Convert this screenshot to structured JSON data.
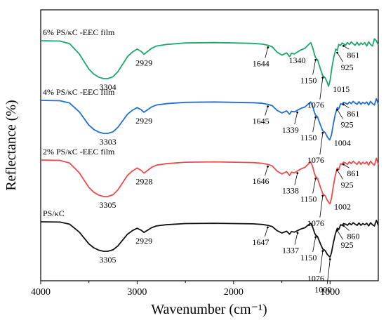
{
  "chart_data": {
    "type": "line",
    "title": "",
    "xlabel": "Wavenumber (cm⁻¹)",
    "ylabel": "Reflectance (%)",
    "x_reversed": true,
    "xlim": [
      4000,
      500
    ],
    "x_ticks": [
      "4000",
      "3000",
      "2000",
      "1000"
    ],
    "y_ticks_shown": false,
    "grid": false,
    "legend": "none",
    "series": [
      {
        "name": "6% PS/κC -EEC film",
        "color": "#1aa86b",
        "x": [
          4000,
          3800,
          3700,
          3600,
          3550,
          3500,
          3450,
          3400,
          3350,
          3304,
          3250,
          3200,
          3150,
          3100,
          3050,
          3000,
          2960,
          2929,
          2900,
          2870,
          2850,
          2800,
          2700,
          2500,
          2200,
          2000,
          1800,
          1700,
          1644,
          1600,
          1550,
          1500,
          1450,
          1420,
          1400,
          1370,
          1340,
          1300,
          1260,
          1230,
          1200,
          1180,
          1160,
          1150,
          1130,
          1100,
          1076,
          1050,
          1030,
          1015,
          1000,
          980,
          960,
          940,
          925,
          910,
          890,
          875,
          861,
          840,
          820,
          800,
          780,
          760,
          740,
          720,
          700,
          680,
          660,
          640,
          620,
          600,
          580,
          560,
          540,
          520,
          500
        ],
        "y": [
          0,
          0.01,
          0.08,
          0.35,
          0.55,
          0.75,
          0.88,
          0.96,
          1.0,
          1.0,
          0.95,
          0.82,
          0.62,
          0.42,
          0.3,
          0.22,
          0.28,
          0.36,
          0.3,
          0.24,
          0.2,
          0.14,
          0.1,
          0.06,
          0.05,
          0.06,
          0.07,
          0.09,
          0.12,
          0.16,
          0.3,
          0.38,
          0.32,
          0.42,
          0.33,
          0.35,
          0.3,
          0.24,
          0.2,
          0.12,
          0.05,
          0.18,
          0.38,
          0.45,
          0.5,
          0.74,
          0.92,
          0.98,
          1.1,
          1.2,
          1.05,
          0.7,
          0.42,
          0.22,
          0.26,
          0.1,
          0.12,
          0.06,
          0.08,
          0.12,
          0.05,
          0.1,
          0.03,
          0.08,
          0.12,
          0.04,
          0.12,
          0.06,
          0.1,
          0.05,
          0.14,
          0.03,
          0.1,
          0.14,
          -0.05,
          0.0,
          0.12
        ]
      },
      {
        "name": "4% PS/κC -EEC film",
        "color": "#1f6fd6",
        "x": [
          4000,
          3800,
          3700,
          3600,
          3550,
          3500,
          3450,
          3400,
          3350,
          3303,
          3250,
          3200,
          3150,
          3100,
          3050,
          3000,
          2960,
          2929,
          2900,
          2870,
          2850,
          2800,
          2700,
          2500,
          2200,
          2000,
          1800,
          1700,
          1645,
          1600,
          1550,
          1500,
          1450,
          1420,
          1400,
          1370,
          1339,
          1300,
          1260,
          1230,
          1200,
          1180,
          1160,
          1150,
          1130,
          1100,
          1076,
          1050,
          1030,
          1004,
          985,
          965,
          945,
          925,
          910,
          890,
          875,
          861,
          840,
          820,
          800,
          780,
          760,
          740,
          720,
          700,
          680,
          660,
          640,
          620,
          600,
          580,
          560,
          540,
          520,
          500
        ],
        "y": [
          0,
          0.01,
          0.08,
          0.35,
          0.55,
          0.75,
          0.88,
          0.96,
          1.0,
          1.0,
          0.95,
          0.82,
          0.62,
          0.42,
          0.3,
          0.22,
          0.28,
          0.36,
          0.3,
          0.24,
          0.2,
          0.14,
          0.1,
          0.06,
          0.05,
          0.06,
          0.07,
          0.09,
          0.12,
          0.16,
          0.3,
          0.38,
          0.32,
          0.42,
          0.33,
          0.35,
          0.3,
          0.24,
          0.2,
          0.12,
          0.05,
          0.18,
          0.38,
          0.45,
          0.5,
          0.74,
          0.92,
          0.98,
          1.1,
          1.2,
          1.05,
          0.7,
          0.42,
          0.22,
          0.26,
          0.1,
          0.12,
          0.06,
          0.08,
          0.12,
          0.05,
          0.1,
          0.03,
          0.08,
          0.12,
          0.04,
          0.12,
          0.06,
          0.1,
          0.05,
          0.14,
          0.03,
          0.1,
          0.14,
          -0.05,
          0.12
        ]
      },
      {
        "name": "2% PS/κC -EEC film",
        "color": "#ef4b4b",
        "x": [
          4000,
          3800,
          3700,
          3600,
          3550,
          3500,
          3450,
          3400,
          3350,
          3305,
          3250,
          3200,
          3150,
          3100,
          3050,
          3000,
          2960,
          2928,
          2900,
          2870,
          2850,
          2800,
          2700,
          2500,
          2200,
          2000,
          1800,
          1700,
          1646,
          1600,
          1550,
          1500,
          1450,
          1420,
          1400,
          1370,
          1338,
          1300,
          1260,
          1230,
          1200,
          1180,
          1160,
          1150,
          1130,
          1100,
          1076,
          1050,
          1030,
          1002,
          985,
          965,
          945,
          925,
          910,
          890,
          875,
          861,
          840,
          820,
          800,
          780,
          760,
          740,
          720,
          700,
          680,
          660,
          640,
          620,
          600,
          580,
          560,
          540,
          520,
          500
        ],
        "y": [
          0,
          0.01,
          0.08,
          0.35,
          0.55,
          0.75,
          0.88,
          0.96,
          1.0,
          1.0,
          0.95,
          0.82,
          0.62,
          0.42,
          0.3,
          0.22,
          0.28,
          0.36,
          0.3,
          0.24,
          0.2,
          0.14,
          0.1,
          0.06,
          0.05,
          0.06,
          0.07,
          0.09,
          0.12,
          0.16,
          0.3,
          0.38,
          0.32,
          0.42,
          0.33,
          0.35,
          0.3,
          0.24,
          0.2,
          0.12,
          0.05,
          0.18,
          0.38,
          0.45,
          0.5,
          0.74,
          0.92,
          0.98,
          1.1,
          1.2,
          1.05,
          0.7,
          0.42,
          0.22,
          0.26,
          0.1,
          0.12,
          0.06,
          0.08,
          0.12,
          0.05,
          0.1,
          0.03,
          0.08,
          0.12,
          0.04,
          0.12,
          0.06,
          0.1,
          0.05,
          0.14,
          0.03,
          0.1,
          0.14,
          -0.05,
          0.12
        ]
      },
      {
        "name": "PS/κC",
        "color": "#111111",
        "x": [
          4000,
          3800,
          3700,
          3600,
          3550,
          3500,
          3450,
          3400,
          3350,
          3305,
          3250,
          3200,
          3150,
          3100,
          3050,
          3000,
          2960,
          2929,
          2900,
          2870,
          2850,
          2800,
          2700,
          2500,
          2200,
          2000,
          1800,
          1700,
          1647,
          1600,
          1550,
          1500,
          1450,
          1420,
          1400,
          1370,
          1337,
          1300,
          1260,
          1230,
          1200,
          1180,
          1160,
          1150,
          1130,
          1100,
          1076,
          1050,
          1030,
          1000,
          985,
          965,
          945,
          925,
          910,
          890,
          875,
          860,
          840,
          820,
          800,
          780,
          760,
          740,
          720,
          700,
          680,
          660,
          640,
          620,
          600,
          580,
          560,
          540,
          520,
          500
        ],
        "y": [
          0,
          0.01,
          0.08,
          0.35,
          0.55,
          0.75,
          0.88,
          0.96,
          1.0,
          1.0,
          0.95,
          0.82,
          0.62,
          0.42,
          0.3,
          0.22,
          0.28,
          0.36,
          0.3,
          0.24,
          0.2,
          0.14,
          0.1,
          0.06,
          0.05,
          0.06,
          0.07,
          0.09,
          0.12,
          0.16,
          0.3,
          0.38,
          0.32,
          0.42,
          0.33,
          0.35,
          0.3,
          0.24,
          0.2,
          0.12,
          0.05,
          0.18,
          0.38,
          0.45,
          0.5,
          0.74,
          0.92,
          0.98,
          1.1,
          1.2,
          1.05,
          0.7,
          0.42,
          0.22,
          0.26,
          0.1,
          0.12,
          0.06,
          0.08,
          0.12,
          0.05,
          0.1,
          0.03,
          0.08,
          0.12,
          0.04,
          0.12,
          0.06,
          0.1,
          0.05,
          0.14,
          0.03,
          0.1,
          0.14,
          -0.05,
          0.12
        ]
      }
    ],
    "annotations": [
      {
        "series": 0,
        "label": "3304",
        "x": 3304
      },
      {
        "series": 0,
        "label": "2929",
        "x": 2929
      },
      {
        "series": 0,
        "label": "1644",
        "x": 1644,
        "arrow": true
      },
      {
        "series": 0,
        "label": "1340",
        "x": 1340
      },
      {
        "series": 0,
        "label": "1150",
        "x": 1150,
        "arrow": true
      },
      {
        "series": 0,
        "label": "1076",
        "x": 1076,
        "arrow": true
      },
      {
        "series": 0,
        "label": "1015",
        "x": 1015
      },
      {
        "series": 0,
        "label": "925",
        "x": 925,
        "arrow": true
      },
      {
        "series": 0,
        "label": "861",
        "x": 861,
        "arrow": true
      },
      {
        "series": 1,
        "label": "3303",
        "x": 3303
      },
      {
        "series": 1,
        "label": "2929",
        "x": 2929
      },
      {
        "series": 1,
        "label": "1645",
        "x": 1645,
        "arrow": true
      },
      {
        "series": 1,
        "label": "1339",
        "x": 1339,
        "arrow": true
      },
      {
        "series": 1,
        "label": "1150",
        "x": 1150,
        "arrow": true
      },
      {
        "series": 1,
        "label": "1076",
        "x": 1076,
        "arrow": true
      },
      {
        "series": 1,
        "label": "1004",
        "x": 1004
      },
      {
        "series": 1,
        "label": "925",
        "x": 925,
        "arrow": true
      },
      {
        "series": 1,
        "label": "861",
        "x": 861,
        "arrow": true
      },
      {
        "series": 2,
        "label": "3305",
        "x": 3305
      },
      {
        "series": 2,
        "label": "2928",
        "x": 2928
      },
      {
        "series": 2,
        "label": "1646",
        "x": 1646,
        "arrow": true
      },
      {
        "series": 2,
        "label": "1338",
        "x": 1338,
        "arrow": true
      },
      {
        "series": 2,
        "label": "1150",
        "x": 1150,
        "arrow": true
      },
      {
        "series": 2,
        "label": "1076",
        "x": 1076,
        "arrow": true
      },
      {
        "series": 2,
        "label": "1002",
        "x": 1002
      },
      {
        "series": 2,
        "label": "925",
        "x": 925,
        "arrow": true
      },
      {
        "series": 2,
        "label": "861",
        "x": 861,
        "arrow": true
      },
      {
        "series": 3,
        "label": "3305",
        "x": 3305
      },
      {
        "series": 3,
        "label": "2929",
        "x": 2929
      },
      {
        "series": 3,
        "label": "1647",
        "x": 1647,
        "arrow": true
      },
      {
        "series": 3,
        "label": "1337",
        "x": 1337,
        "arrow": true
      },
      {
        "series": 3,
        "label": "1150",
        "x": 1150,
        "arrow": true
      },
      {
        "series": 3,
        "label": "1076",
        "x": 1076,
        "arrow": true
      },
      {
        "series": 3,
        "label": "1000",
        "x": 1000,
        "arrow": true
      },
      {
        "series": 3,
        "label": "925",
        "x": 925,
        "arrow": true
      },
      {
        "series": 3,
        "label": "860",
        "x": 860,
        "arrow": true
      }
    ]
  }
}
